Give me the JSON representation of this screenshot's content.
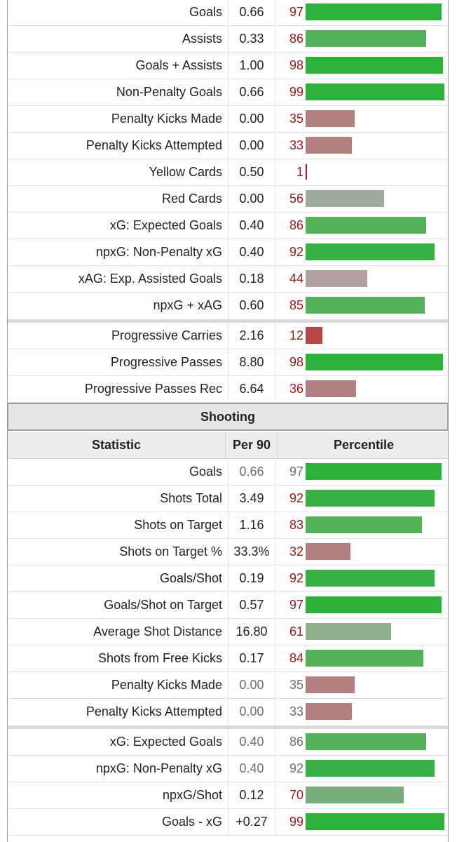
{
  "rows_top": [
    {
      "label": "Goals",
      "value": "0.66",
      "pct": "97",
      "pctv": 97,
      "color": "#2db13c"
    },
    {
      "label": "Assists",
      "value": "0.33",
      "pct": "86",
      "pctv": 86,
      "color": "#55b25a"
    },
    {
      "label": "Goals + Assists",
      "value": "1.00",
      "pct": "98",
      "pctv": 98,
      "color": "#2db13c"
    },
    {
      "label": "Non-Penalty Goals",
      "value": "0.66",
      "pct": "99",
      "pctv": 99,
      "color": "#2db13c"
    },
    {
      "label": "Penalty Kicks Made",
      "value": "0.00",
      "pct": "35",
      "pctv": 35,
      "color": "#b08180"
    },
    {
      "label": "Penalty Kicks Attempted",
      "value": "0.00",
      "pct": "33",
      "pctv": 33,
      "color": "#b08180"
    },
    {
      "label": "Yellow Cards",
      "value": "0.50",
      "pct": "1",
      "pctv": 1,
      "color": "#b04444"
    },
    {
      "label": "Red Cards",
      "value": "0.00",
      "pct": "56",
      "pctv": 56,
      "color": "#9fac9d"
    },
    {
      "label": "xG: Expected Goals",
      "value": "0.40",
      "pct": "86",
      "pctv": 86,
      "color": "#55b25a"
    },
    {
      "label": "npxG: Non-Penalty xG",
      "value": "0.40",
      "pct": "92",
      "pctv": 92,
      "color": "#38b043"
    },
    {
      "label": "xAG: Exp. Assisted Goals",
      "value": "0.18",
      "pct": "44",
      "pctv": 44,
      "color": "#b1a2a1"
    },
    {
      "label": "npxG + xAG",
      "value": "0.60",
      "pct": "85",
      "pctv": 85,
      "color": "#55b25a",
      "group_end": true
    },
    {
      "label": "Progressive Carries",
      "value": "2.16",
      "pct": "12",
      "pctv": 12,
      "color": "#b84545"
    },
    {
      "label": "Progressive Passes",
      "value": "8.80",
      "pct": "98",
      "pctv": 98,
      "color": "#2db13c"
    },
    {
      "label": "Progressive Passes Rec",
      "value": "6.64",
      "pct": "36",
      "pctv": 36,
      "color": "#b08180"
    }
  ],
  "section": {
    "title": "Shooting",
    "col_stat": "Statistic",
    "col_per90": "Per 90",
    "col_pct": "Percentile"
  },
  "rows_shooting": [
    {
      "label": "Goals",
      "value": "0.66",
      "pct": "97",
      "pctv": 97,
      "color": "#2db13c",
      "dim": true
    },
    {
      "label": "Shots Total",
      "value": "3.49",
      "pct": "92",
      "pctv": 92,
      "color": "#38b043"
    },
    {
      "label": "Shots on Target",
      "value": "1.16",
      "pct": "83",
      "pctv": 83,
      "color": "#55b25a"
    },
    {
      "label": "Shots on Target %",
      "value": "33.3%",
      "pct": "32",
      "pctv": 32,
      "color": "#b08180"
    },
    {
      "label": "Goals/Shot",
      "value": "0.19",
      "pct": "92",
      "pctv": 92,
      "color": "#38b043"
    },
    {
      "label": "Goals/Shot on Target",
      "value": "0.57",
      "pct": "97",
      "pctv": 97,
      "color": "#2db13c"
    },
    {
      "label": "Average Shot Distance",
      "value": "16.80",
      "pct": "61",
      "pctv": 61,
      "color": "#8fb08f"
    },
    {
      "label": "Shots from Free Kicks",
      "value": "0.17",
      "pct": "84",
      "pctv": 84,
      "color": "#55b25a"
    },
    {
      "label": "Penalty Kicks Made",
      "value": "0.00",
      "pct": "35",
      "pctv": 35,
      "color": "#b08180",
      "dim": true
    },
    {
      "label": "Penalty Kicks Attempted",
      "value": "0.00",
      "pct": "33",
      "pctv": 33,
      "color": "#b08180",
      "dim": true,
      "group_end": true
    },
    {
      "label": "xG: Expected Goals",
      "value": "0.40",
      "pct": "86",
      "pctv": 86,
      "color": "#55b25a",
      "dim": true
    },
    {
      "label": "npxG: Non-Penalty xG",
      "value": "0.40",
      "pct": "92",
      "pctv": 92,
      "color": "#38b043",
      "dim": true
    },
    {
      "label": "npxG/Shot",
      "value": "0.12",
      "pct": "70",
      "pctv": 70,
      "color": "#7aae7a"
    },
    {
      "label": "Goals - xG",
      "value": "+0.27",
      "pct": "99",
      "pctv": 99,
      "color": "#2db13c"
    }
  ]
}
